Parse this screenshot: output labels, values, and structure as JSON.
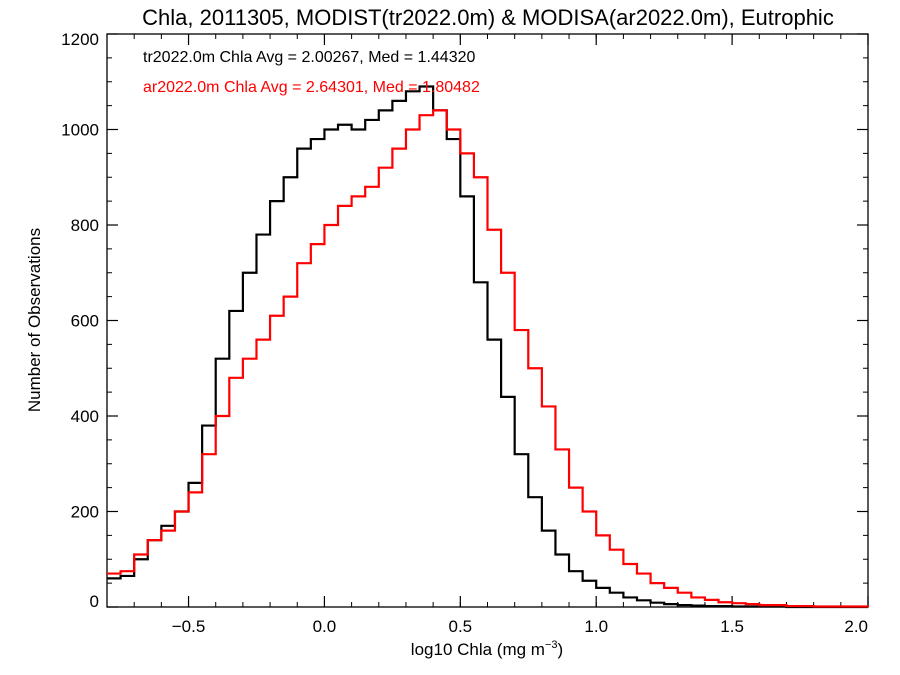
{
  "chart_data": {
    "type": "line",
    "style": "step-histogram",
    "title": "Chla, 2011305, MODIST(tr2022.0m) & MODISA(ar2022.0m), Eutrophic",
    "xlabel": {
      "main": "log10 Chla (mg m",
      "sup": "−3",
      "close": ")"
    },
    "ylabel": "Number of Observations",
    "xlim": [
      -0.8,
      2.0
    ],
    "ylim": [
      0,
      1200
    ],
    "x_ticks": [
      -0.5,
      0.0,
      0.5,
      1.0,
      1.5,
      2.0
    ],
    "x_tick_labels": [
      "−0.5",
      "0.0",
      "0.5",
      "1.0",
      "1.5",
      "2.0"
    ],
    "y_ticks": [
      0,
      200,
      400,
      600,
      800,
      1000,
      1200
    ],
    "y_tick_labels": [
      "0",
      "200",
      "400",
      "600",
      "800",
      "1000",
      "1200"
    ],
    "x_minor_step": 0.1,
    "y_minor_step": 50,
    "grid": false,
    "annotations": [
      {
        "text": "tr2022.0m Chla Avg = 2.00267, Med = 1.44320",
        "color": "#000000"
      },
      {
        "text": "ar2022.0m Chla Avg = 2.64301, Med = 1.80482",
        "color": "#ff0000"
      }
    ],
    "series": [
      {
        "color": "#000000",
        "x": [
          -0.8,
          -0.75,
          -0.7,
          -0.65,
          -0.6,
          -0.55,
          -0.5,
          -0.45,
          -0.4,
          -0.35,
          -0.3,
          -0.25,
          -0.2,
          -0.15,
          -0.1,
          -0.05,
          0.0,
          0.05,
          0.1,
          0.15,
          0.2,
          0.25,
          0.3,
          0.35,
          0.4,
          0.45,
          0.5,
          0.55,
          0.6,
          0.65,
          0.7,
          0.75,
          0.8,
          0.85,
          0.9,
          0.95,
          1.0,
          1.05,
          1.1,
          1.15,
          1.2,
          1.25,
          1.3,
          1.35,
          1.4,
          1.45,
          1.5,
          1.55,
          1.6,
          1.7,
          1.8,
          1.9,
          2.0
        ],
        "y": [
          60,
          65,
          100,
          140,
          170,
          200,
          260,
          380,
          520,
          620,
          700,
          780,
          850,
          900,
          960,
          980,
          1000,
          1010,
          1000,
          1020,
          1040,
          1060,
          1080,
          1090,
          1040,
          980,
          860,
          680,
          560,
          440,
          320,
          230,
          160,
          110,
          75,
          55,
          40,
          30,
          20,
          14,
          9,
          6,
          4,
          3,
          2,
          2,
          1,
          1,
          1,
          0,
          0,
          0,
          0
        ]
      },
      {
        "color": "#ff0000",
        "x": [
          -0.8,
          -0.75,
          -0.7,
          -0.65,
          -0.6,
          -0.55,
          -0.5,
          -0.45,
          -0.4,
          -0.35,
          -0.3,
          -0.25,
          -0.2,
          -0.15,
          -0.1,
          -0.05,
          0.0,
          0.05,
          0.1,
          0.15,
          0.2,
          0.25,
          0.3,
          0.35,
          0.4,
          0.45,
          0.5,
          0.55,
          0.6,
          0.65,
          0.7,
          0.75,
          0.8,
          0.85,
          0.9,
          0.95,
          1.0,
          1.05,
          1.1,
          1.15,
          1.2,
          1.25,
          1.3,
          1.35,
          1.4,
          1.45,
          1.5,
          1.55,
          1.6,
          1.7,
          1.8,
          1.9,
          2.0
        ],
        "y": [
          70,
          75,
          110,
          140,
          160,
          200,
          240,
          320,
          400,
          480,
          520,
          560,
          610,
          650,
          720,
          760,
          800,
          840,
          860,
          880,
          920,
          960,
          1000,
          1030,
          1040,
          1000,
          950,
          900,
          790,
          700,
          580,
          500,
          420,
          330,
          250,
          200,
          150,
          120,
          90,
          70,
          50,
          40,
          30,
          20,
          15,
          10,
          8,
          6,
          4,
          2,
          1,
          1,
          0
        ]
      }
    ]
  }
}
